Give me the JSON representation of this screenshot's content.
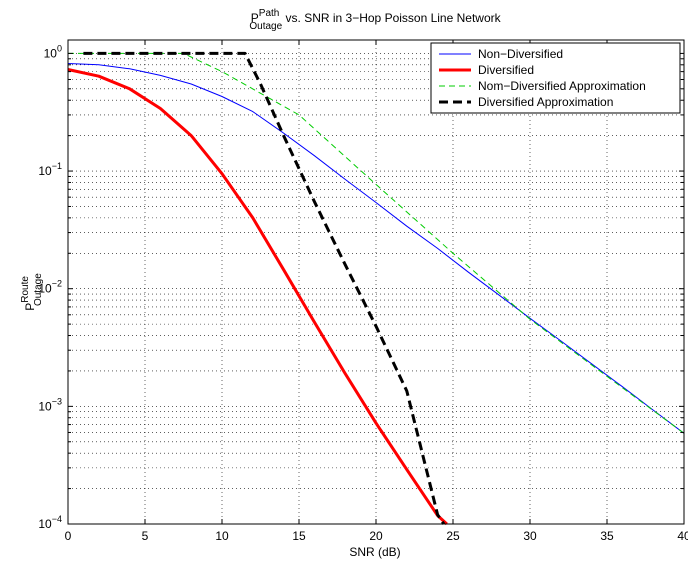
{
  "chart_data": {
    "type": "line",
    "title": {
      "base": "P",
      "sup": "Path",
      "sub": "Outage",
      "rest": " vs. SNR in 3−Hop Poisson Line Network"
    },
    "xlabel": "SNR (dB)",
    "ylabel": {
      "base": "P",
      "sup": "Route",
      "sub": "Outage"
    },
    "xlim": [
      0,
      40
    ],
    "ylim": [
      0.0001,
      1.3
    ],
    "yscale": "log",
    "grid": true,
    "legend_position": "top-right",
    "x_ticks": [
      "0",
      "5",
      "10",
      "15",
      "20",
      "25",
      "30",
      "35",
      "40"
    ],
    "y_ticks": [
      {
        "base": "10",
        "exp": "0",
        "value": 1
      },
      {
        "base": "10",
        "exp": "−1",
        "value": 0.1
      },
      {
        "base": "10",
        "exp": "−2",
        "value": 0.01
      },
      {
        "base": "10",
        "exp": "−3",
        "value": 0.001
      },
      {
        "base": "10",
        "exp": "−4",
        "value": 0.0001
      }
    ],
    "series": [
      {
        "name": "Non−Diversified",
        "color": "#0000ff",
        "style": "solid",
        "width": "thin",
        "x": [
          0,
          2,
          4,
          6,
          8,
          10,
          12,
          14,
          16,
          18,
          20,
          22,
          24,
          26,
          28,
          30,
          32,
          34,
          36,
          38,
          40
        ],
        "y": [
          0.82,
          0.8,
          0.74,
          0.65,
          0.55,
          0.43,
          0.32,
          0.21,
          0.135,
          0.085,
          0.054,
          0.034,
          0.022,
          0.0138,
          0.0088,
          0.0056,
          0.0036,
          0.0023,
          0.00147,
          0.00093,
          0.00059
        ]
      },
      {
        "name": "Diversified",
        "color": "#ff0000",
        "style": "solid",
        "width": "thick",
        "x": [
          0,
          2,
          4,
          6,
          8,
          10,
          12,
          14,
          16,
          18,
          20,
          22,
          24,
          24.6
        ],
        "y": [
          0.73,
          0.64,
          0.5,
          0.34,
          0.2,
          0.095,
          0.04,
          0.0145,
          0.0052,
          0.0019,
          0.00072,
          0.00029,
          0.000118,
          0.0001
        ]
      },
      {
        "name": "Nom−Diversified Approximation",
        "color": "#00cc00",
        "style": "dashed",
        "width": "thin",
        "x": [
          0,
          7.5,
          10,
          15,
          20,
          25,
          30,
          35,
          40
        ],
        "y": [
          1,
          1,
          0.7,
          0.3,
          0.077,
          0.02,
          0.0055,
          0.0018,
          0.00059
        ]
      },
      {
        "name": "Diversified Approximation",
        "color": "#000000",
        "style": "dashed",
        "width": "thick",
        "x": [
          1,
          11.5,
          12.5,
          14,
          16,
          18,
          20,
          22,
          24,
          24.4
        ],
        "y": [
          1,
          1,
          0.55,
          0.2,
          0.055,
          0.016,
          0.0048,
          0.00135,
          0.00012,
          0.0001
        ]
      }
    ]
  }
}
